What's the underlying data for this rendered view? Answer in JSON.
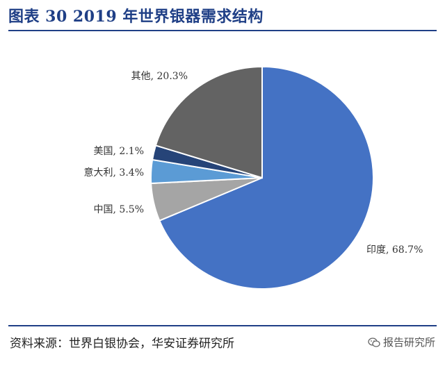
{
  "title": "图表 30 2019 年世界银器需求结构",
  "chart_data": {
    "type": "pie",
    "title": "",
    "start": "top",
    "direction": "clockwise",
    "slices": [
      {
        "label": "印度",
        "value": 68.7,
        "display": "印度, 68.7%",
        "color": "#4472c4"
      },
      {
        "label": "中国",
        "value": 5.5,
        "display": "中国, 5.5%",
        "color": "#a5a5a5"
      },
      {
        "label": "意大利",
        "value": 3.4,
        "display": "意大利, 3.4%",
        "color": "#5b9bd5"
      },
      {
        "label": "美国",
        "value": 2.1,
        "display": "美国, 2.1%",
        "color": "#264478"
      },
      {
        "label": "其他",
        "value": 20.3,
        "display": "其他, 20.3%",
        "color": "#636363"
      }
    ]
  },
  "source": "资料来源：世界白银协会，华安证券研究所",
  "watermark": "报告研究所",
  "icons": {
    "watermark": "wechat-icon"
  }
}
